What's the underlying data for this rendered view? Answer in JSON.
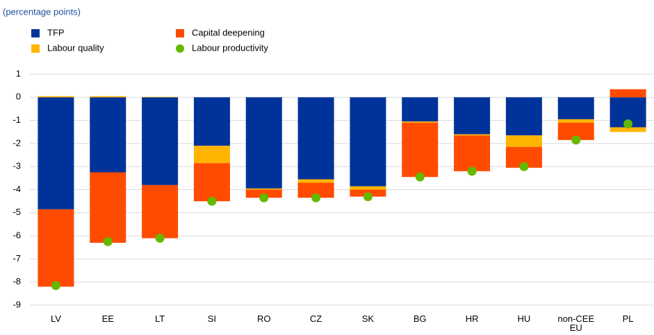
{
  "chart_data": {
    "type": "bar",
    "stacked": true,
    "subtitle": "(percentage points)",
    "categories": [
      "LV",
      "EE",
      "LT",
      "SI",
      "RO",
      "CZ",
      "SK",
      "BG",
      "HR",
      "HU",
      "non-CEE EU",
      "PL"
    ],
    "series": [
      {
        "name": "TFP",
        "color": "#003399",
        "values": [
          -4.85,
          -3.25,
          -3.8,
          -2.1,
          -3.95,
          -3.55,
          -3.85,
          -1.05,
          -1.6,
          -1.65,
          -0.95,
          -1.3
        ]
      },
      {
        "name": "Capital deepening",
        "color": "#ff4b00",
        "values": [
          -3.35,
          -3.05,
          -2.3,
          -1.65,
          -0.35,
          -0.65,
          -0.3,
          -2.35,
          -1.55,
          -0.9,
          -0.75,
          0.35
        ]
      },
      {
        "name": "Labour quality",
        "color": "#ffb400",
        "values": [
          0.05,
          0.05,
          0.02,
          -0.75,
          -0.05,
          -0.15,
          -0.15,
          -0.05,
          -0.05,
          -0.5,
          -0.15,
          -0.2
        ]
      },
      {
        "name": "Labour productivity",
        "color": "#65b800",
        "type": "scatter",
        "values": [
          -8.15,
          -6.25,
          -6.1,
          -4.5,
          -4.35,
          -4.35,
          -4.3,
          -3.45,
          -3.2,
          -3.0,
          -1.85,
          -1.15
        ]
      }
    ],
    "ylim": [
      -9,
      1
    ],
    "yticks": [
      1,
      0,
      -1,
      -2,
      -3,
      -4,
      -5,
      -6,
      -7,
      -8,
      -9
    ],
    "grid": true
  }
}
